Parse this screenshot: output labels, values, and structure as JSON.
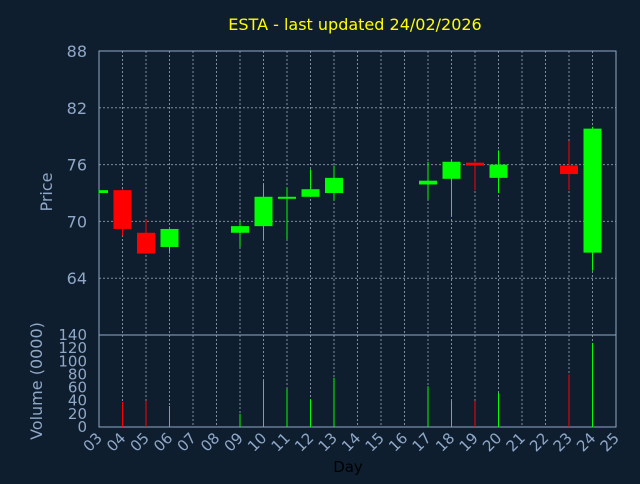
{
  "chart_data": {
    "type": "candlestick",
    "title": "ESTA - last updated 24/02/2026",
    "xlabel": "Day",
    "ylabel": "Price",
    "volume_label": "Volume (0000)",
    "grid": true,
    "price_ylim": [
      58,
      88
    ],
    "price_ticks": [
      64,
      70,
      76,
      82,
      88
    ],
    "volume_ylim": [
      0,
      140
    ],
    "volume_ticks": [
      0,
      20,
      40,
      60,
      80,
      100,
      120,
      140
    ],
    "x_tick_labels": [
      "03",
      "04",
      "05",
      "06",
      "07",
      "08",
      "09",
      "10",
      "11",
      "12",
      "13",
      "14",
      "15",
      "16",
      "17",
      "18",
      "19",
      "20",
      "21",
      "22",
      "23",
      "24",
      "25"
    ],
    "up_color": "#00ff00",
    "down_color": "#ff0000",
    "title_color": "#ffff00",
    "axis_text_color": "#8fa8c8",
    "candles": [
      {
        "day": "03",
        "open": 73.0,
        "high": 73.3,
        "low": 72.9,
        "close": 73.3,
        "volume": 0
      },
      {
        "day": "04",
        "open": 73.3,
        "high": 73.4,
        "low": 68.5,
        "close": 69.2,
        "volume": 38
      },
      {
        "day": "05",
        "open": 68.8,
        "high": 70.2,
        "low": 66.6,
        "close": 66.6,
        "volume": 40
      },
      {
        "day": "06",
        "open": 67.3,
        "high": 69.2,
        "low": 66.6,
        "close": 69.2,
        "volume": 32
      },
      {
        "day": "09",
        "open": 68.8,
        "high": 70.0,
        "low": 67.3,
        "close": 69.5,
        "volume": 20
      },
      {
        "day": "10",
        "open": 69.5,
        "high": 74.0,
        "low": 68.0,
        "close": 72.6,
        "volume": 70
      },
      {
        "day": "11",
        "open": 72.4,
        "high": 73.6,
        "low": 68.1,
        "close": 72.6,
        "volume": 58
      },
      {
        "day": "12",
        "open": 72.6,
        "high": 75.5,
        "low": 72.6,
        "close": 73.4,
        "volume": 42
      },
      {
        "day": "13",
        "open": 73.0,
        "high": 75.9,
        "low": 72.2,
        "close": 74.6,
        "volume": 75
      },
      {
        "day": "17",
        "open": 73.9,
        "high": 76.3,
        "low": 72.3,
        "close": 74.3,
        "volume": 62
      },
      {
        "day": "18",
        "open": 74.5,
        "high": 76.5,
        "low": 70.5,
        "close": 76.3,
        "volume": 40
      },
      {
        "day": "19",
        "open": 76.2,
        "high": 76.4,
        "low": 73.3,
        "close": 75.9,
        "volume": 40
      },
      {
        "day": "20",
        "open": 74.6,
        "high": 77.5,
        "low": 73.0,
        "close": 76.0,
        "volume": 52
      },
      {
        "day": "23",
        "open": 75.9,
        "high": 78.5,
        "low": 73.3,
        "close": 75.0,
        "volume": 80
      },
      {
        "day": "24",
        "open": 66.7,
        "high": 80.0,
        "low": 64.8,
        "close": 79.8,
        "volume": 128
      }
    ]
  }
}
